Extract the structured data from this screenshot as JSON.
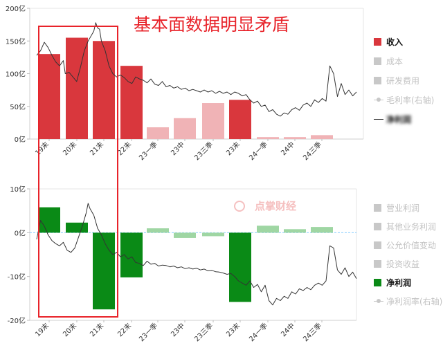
{
  "annotation": {
    "headline": "基本面数据明显矛盾",
    "headline_color": "#e8232a",
    "watermark": "点掌财经"
  },
  "colors": {
    "strong_red": "#d9373d",
    "light_red": "#f0b3b6",
    "strong_green": "#0a8a16",
    "light_green": "#9fd6a3",
    "price_line": "#333333",
    "box": "#e8232a",
    "legend_inactive": "#c8c8c8"
  },
  "chart_data": [
    {
      "type": "bar",
      "title": "",
      "categories": [
        "19末",
        "20末",
        "21末",
        "22末",
        "23一季",
        "23中",
        "23三季",
        "23末",
        "24一季",
        "24中",
        "24三季"
      ],
      "series": [
        {
          "name": "收入",
          "values": [
            130,
            155,
            150,
            112,
            18,
            32,
            55,
            60,
            3,
            3,
            6
          ]
        }
      ],
      "highlight": [
        "strong",
        "strong",
        "strong",
        "strong",
        "light",
        "light",
        "light",
        "strong",
        "light",
        "light",
        "light"
      ],
      "ylim": [
        0,
        200
      ],
      "yticks": [
        "0亿",
        "50亿",
        "100亿",
        "150亿",
        "200亿"
      ],
      "ytick_values": [
        0,
        50,
        100,
        150,
        200
      ],
      "price_line": [
        [
          0,
          128
        ],
        [
          2,
          135
        ],
        [
          4,
          148
        ],
        [
          6,
          140
        ],
        [
          8,
          128
        ],
        [
          10,
          118
        ],
        [
          12,
          112
        ],
        [
          14,
          120
        ],
        [
          15,
          100
        ],
        [
          17,
          102
        ],
        [
          19,
          95
        ],
        [
          21,
          88
        ],
        [
          23,
          110
        ],
        [
          25,
          135
        ],
        [
          27,
          150
        ],
        [
          29,
          160
        ],
        [
          30,
          165
        ],
        [
          31,
          178
        ],
        [
          32,
          170
        ],
        [
          33,
          168
        ],
        [
          34,
          150
        ],
        [
          36,
          135
        ],
        [
          38,
          112
        ],
        [
          40,
          100
        ],
        [
          42,
          95
        ],
        [
          44,
          98
        ],
        [
          46,
          94
        ],
        [
          48,
          88
        ],
        [
          50,
          85
        ],
        [
          52,
          95
        ],
        [
          54,
          92
        ],
        [
          56,
          90
        ],
        [
          58,
          86
        ],
        [
          60,
          92
        ],
        [
          62,
          84
        ],
        [
          64,
          82
        ],
        [
          66,
          88
        ],
        [
          68,
          80
        ],
        [
          70,
          82
        ],
        [
          72,
          78
        ],
        [
          74,
          80
        ],
        [
          76,
          76
        ],
        [
          78,
          78
        ],
        [
          80,
          74
        ],
        [
          82,
          76
        ],
        [
          84,
          74
        ],
        [
          86,
          72
        ],
        [
          88,
          75
        ],
        [
          90,
          72
        ],
        [
          92,
          74
        ],
        [
          94,
          70
        ],
        [
          96,
          73
        ],
        [
          98,
          70
        ],
        [
          100,
          72
        ],
        [
          102,
          68
        ],
        [
          104,
          72
        ],
        [
          106,
          70
        ],
        [
          108,
          66
        ],
        [
          110,
          68
        ],
        [
          112,
          60
        ],
        [
          114,
          55
        ],
        [
          116,
          58
        ],
        [
          118,
          50
        ],
        [
          120,
          52
        ],
        [
          122,
          42
        ],
        [
          124,
          45
        ],
        [
          126,
          38
        ],
        [
          128,
          35
        ],
        [
          130,
          40
        ],
        [
          132,
          38
        ],
        [
          134,
          45
        ],
        [
          136,
          48
        ],
        [
          138,
          44
        ],
        [
          140,
          52
        ],
        [
          142,
          55
        ],
        [
          144,
          50
        ],
        [
          146,
          60
        ],
        [
          148,
          56
        ],
        [
          150,
          62
        ],
        [
          152,
          58
        ],
        [
          154,
          112
        ],
        [
          156,
          100
        ],
        [
          158,
          65
        ],
        [
          160,
          85
        ],
        [
          162,
          68
        ],
        [
          164,
          75
        ],
        [
          166,
          66
        ],
        [
          168,
          72
        ]
      ]
    },
    {
      "type": "bar",
      "title": "",
      "categories": [
        "19末",
        "20末",
        "21末",
        "22末",
        "23一季",
        "23中",
        "23三季",
        "23末",
        "24一季",
        "24中",
        "24三季"
      ],
      "series": [
        {
          "name": "净利润",
          "values": [
            5.8,
            2.3,
            -17.5,
            -10.2,
            1.0,
            -1.2,
            -0.8,
            -15.8,
            1.6,
            0.8,
            1.3
          ]
        }
      ],
      "highlight": [
        "strong",
        "strong",
        "strong",
        "strong",
        "light",
        "light",
        "light",
        "strong",
        "light",
        "light",
        "light"
      ],
      "ylim": [
        -20,
        10
      ],
      "yticks": [
        "-20亿",
        "-10亿",
        "0亿",
        "10亿"
      ],
      "ytick_values": [
        -20,
        -10,
        0,
        10
      ],
      "price_line": [
        [
          0,
          -1.5
        ],
        [
          2,
          2.8
        ],
        [
          4,
          1.5
        ],
        [
          6,
          -0.5
        ],
        [
          8,
          -1.8
        ],
        [
          10,
          -2.5
        ],
        [
          12,
          -3.0
        ],
        [
          14,
          -2.2
        ],
        [
          16,
          -4.0
        ],
        [
          18,
          -4.5
        ],
        [
          20,
          -3.5
        ],
        [
          22,
          -1.0
        ],
        [
          24,
          1.5
        ],
        [
          26,
          4.5
        ],
        [
          27,
          6.7
        ],
        [
          28,
          5.5
        ],
        [
          30,
          4.0
        ],
        [
          32,
          1.0
        ],
        [
          34,
          -0.5
        ],
        [
          36,
          -2.5
        ],
        [
          38,
          -4.0
        ],
        [
          40,
          -5.0
        ],
        [
          42,
          -4.5
        ],
        [
          44,
          -5.5
        ],
        [
          46,
          -5.0
        ],
        [
          48,
          -6.0
        ],
        [
          50,
          -5.5
        ],
        [
          52,
          -6.8
        ],
        [
          54,
          -7.0
        ],
        [
          56,
          -7.5
        ],
        [
          58,
          -6.5
        ],
        [
          60,
          -7.2
        ],
        [
          62,
          -7.0
        ],
        [
          64,
          -7.6
        ],
        [
          66,
          -7.4
        ],
        [
          68,
          -7.5
        ],
        [
          70,
          -7.8
        ],
        [
          72,
          -7.6
        ],
        [
          74,
          -8.0
        ],
        [
          76,
          -7.8
        ],
        [
          78,
          -8.2
        ],
        [
          80,
          -8.0
        ],
        [
          82,
          -8.3
        ],
        [
          84,
          -8.1
        ],
        [
          86,
          -8.5
        ],
        [
          88,
          -8.3
        ],
        [
          90,
          -8.7
        ],
        [
          92,
          -8.6
        ],
        [
          94,
          -8.9
        ],
        [
          96,
          -9.0
        ],
        [
          98,
          -9.2
        ],
        [
          100,
          -9.5
        ],
        [
          102,
          -9.3
        ],
        [
          104,
          -10.0
        ],
        [
          106,
          -11.0
        ],
        [
          108,
          -11.5
        ],
        [
          110,
          -12.0
        ],
        [
          112,
          -11.0
        ],
        [
          114,
          -12.5
        ],
        [
          116,
          -11.8
        ],
        [
          118,
          -13.5
        ],
        [
          120,
          -12.0
        ],
        [
          122,
          -15.5
        ],
        [
          124,
          -16.5
        ],
        [
          126,
          -15.0
        ],
        [
          128,
          -15.5
        ],
        [
          130,
          -14.5
        ],
        [
          132,
          -15.0
        ],
        [
          134,
          -13.5
        ],
        [
          136,
          -14.0
        ],
        [
          138,
          -12.8
        ],
        [
          140,
          -13.2
        ],
        [
          142,
          -12.5
        ],
        [
          144,
          -13.0
        ],
        [
          146,
          -12.0
        ],
        [
          148,
          -11.5
        ],
        [
          150,
          -12.0
        ],
        [
          152,
          -11.0
        ],
        [
          154,
          -3.0
        ],
        [
          156,
          -3.5
        ],
        [
          158,
          -8.5
        ],
        [
          160,
          -9.5
        ],
        [
          162,
          -8.0
        ],
        [
          164,
          -10.0
        ],
        [
          166,
          -9.0
        ],
        [
          168,
          -10.5
        ]
      ]
    }
  ],
  "legend_top": [
    {
      "label": "收入",
      "style": "box",
      "color": "#d9373d",
      "active": true
    },
    {
      "label": "成本",
      "style": "box",
      "color": "#c8c8c8",
      "active": false
    },
    {
      "label": "研发费用",
      "style": "box",
      "color": "#c8c8c8",
      "active": false
    },
    {
      "label": "毛利率(右轴)",
      "style": "dotline",
      "color": "#c8c8c8",
      "active": false
    },
    {
      "label": "净利润",
      "style": "line",
      "color": "#333333",
      "active": true,
      "blurred": true
    }
  ],
  "legend_bottom": [
    {
      "label": "营业利润",
      "style": "box",
      "color": "#c8c8c8",
      "active": false
    },
    {
      "label": "其他业务利润",
      "style": "box",
      "color": "#c8c8c8",
      "active": false
    },
    {
      "label": "公允价值变动",
      "style": "box",
      "color": "#c8c8c8",
      "active": false
    },
    {
      "label": "投资收益",
      "style": "box",
      "color": "#c8c8c8",
      "active": false
    },
    {
      "label": "净利润",
      "style": "box",
      "color": "#0a8a16",
      "active": true
    },
    {
      "label": "净利润率(右轴)",
      "style": "dotline",
      "color": "#c8c8c8",
      "active": false
    }
  ]
}
